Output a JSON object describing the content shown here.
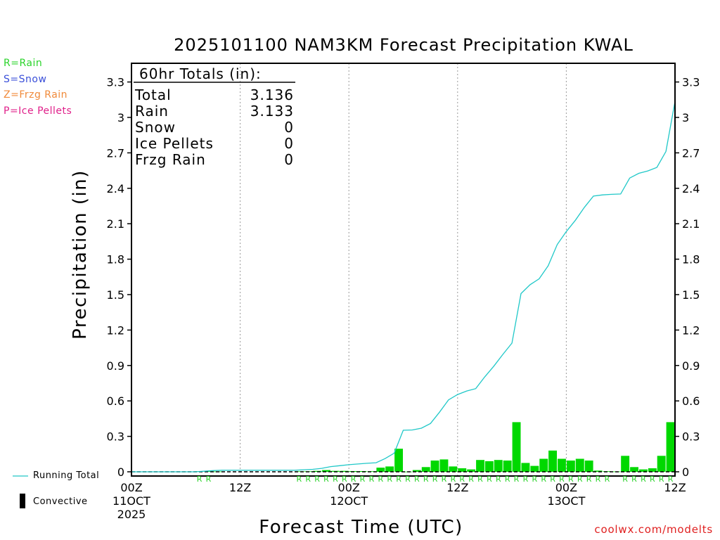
{
  "legend": {
    "rain": "R=Rain",
    "snow": "S=Snow",
    "frzg_rain": "Z=Frzg Rain",
    "ice_pellets": "P=Ice Pellets"
  },
  "colors": {
    "rain": "#2ad32a",
    "snow": "#3a4fd9",
    "frzg_rain": "#f08a3a",
    "ice_pellets": "#e0208a",
    "running_total": "#20c8c8",
    "bars": "#00d800",
    "credit": "#e02020"
  },
  "bottom_legend": {
    "running_total": "Running Total",
    "convective": "Convective"
  },
  "credit": "coolwx.com/modelts",
  "chart_data": {
    "type": "bar",
    "title": "2025101100 NAM3KM Forecast Precipitation KWAL",
    "xlabel": "Forecast Time (UTC)",
    "ylabel": "Precipitation (in)",
    "ylim": [
      0,
      3.45
    ],
    "xlim": [
      0,
      60
    ],
    "yticks": [
      "0",
      "0.3",
      "0.6",
      "0.9",
      "1.2",
      "1.5",
      "1.8",
      "2.1",
      "2.4",
      "2.7",
      "3",
      "3.3"
    ],
    "xticks": [
      {
        "hour": 0,
        "lines": [
          "00Z",
          "11OCT",
          "2025"
        ]
      },
      {
        "hour": 12,
        "lines": [
          "12Z"
        ]
      },
      {
        "hour": 24,
        "lines": [
          "00Z",
          "12OCT"
        ]
      },
      {
        "hour": 36,
        "lines": [
          "12Z"
        ]
      },
      {
        "hour": 48,
        "lines": [
          "00Z",
          "13OCT"
        ]
      },
      {
        "hour": 60,
        "lines": [
          "12Z"
        ]
      }
    ],
    "totals_box": {
      "header": "60hr Totals (in):",
      "rows": [
        {
          "label": "Total",
          "value": "3.136"
        },
        {
          "label": "Rain",
          "value": "3.133"
        },
        {
          "label": "Snow",
          "value": "0"
        },
        {
          "label": "Ice Pellets",
          "value": "0"
        },
        {
          "label": "Frzg Rain",
          "value": "0"
        }
      ]
    },
    "series": [
      {
        "name": "Hourly Precipitation",
        "type": "bar",
        "hours": [
          8,
          9,
          10,
          19,
          20,
          21,
          22,
          23,
          24,
          25,
          26,
          27,
          28,
          29,
          30,
          31,
          32,
          33,
          34,
          35,
          36,
          37,
          38,
          39,
          40,
          41,
          42,
          43,
          44,
          45,
          46,
          47,
          48,
          49,
          50,
          51,
          52,
          53,
          54,
          55,
          56,
          57,
          58,
          59,
          60
        ],
        "values": [
          0.005,
          0.005,
          0.003,
          0.004,
          0.004,
          0.008,
          0.015,
          0.008,
          0.008,
          0.006,
          0.006,
          0.005,
          0.035,
          0.045,
          0.195,
          0.002,
          0.015,
          0.04,
          0.095,
          0.105,
          0.045,
          0.03,
          0.02,
          0.1,
          0.09,
          0.1,
          0.095,
          0.42,
          0.075,
          0.05,
          0.11,
          0.18,
          0.11,
          0.095,
          0.11,
          0.095,
          0.01,
          0.005,
          0.003,
          0.135,
          0.04,
          0.02,
          0.03,
          0.135,
          0.42
        ]
      },
      {
        "name": "Running Total",
        "type": "line",
        "hours": [
          0,
          1,
          2,
          3,
          4,
          5,
          6,
          7,
          8,
          9,
          10,
          11,
          12,
          13,
          14,
          15,
          16,
          17,
          18,
          19,
          20,
          21,
          22,
          23,
          24,
          25,
          26,
          27,
          28,
          29,
          30,
          31,
          32,
          33,
          34,
          35,
          36,
          37,
          38,
          39,
          40,
          41,
          42,
          43,
          44,
          45,
          46,
          47,
          48,
          49,
          50,
          51,
          52,
          53,
          54,
          55,
          56,
          57,
          58,
          59,
          60
        ],
        "values": [
          0,
          0,
          0,
          0,
          0,
          0,
          0,
          0,
          0.005,
          0.01,
          0.013,
          0.013,
          0.013,
          0.013,
          0.013,
          0.013,
          0.013,
          0.013,
          0.013,
          0.017,
          0.021,
          0.029,
          0.044,
          0.052,
          0.06,
          0.066,
          0.072,
          0.077,
          0.112,
          0.157,
          0.352,
          0.354,
          0.369,
          0.409,
          0.504,
          0.609,
          0.654,
          0.684,
          0.704,
          0.804,
          0.894,
          0.994,
          1.089,
          1.509,
          1.584,
          1.634,
          1.744,
          1.924,
          2.034,
          2.129,
          2.239,
          2.334,
          2.344,
          2.349,
          2.352,
          2.487,
          2.527,
          2.547,
          2.577,
          2.712,
          3.136
        ]
      }
    ],
    "precip_type_markers": {
      "label": "R",
      "hours": [
        8,
        9,
        19,
        20,
        21,
        22,
        23,
        24,
        25,
        26,
        27,
        28,
        29,
        30,
        31,
        32,
        33,
        34,
        35,
        36,
        37,
        38,
        39,
        40,
        41,
        42,
        43,
        44,
        45,
        46,
        47,
        48,
        49,
        50,
        51,
        52,
        53,
        55,
        56,
        57,
        58,
        59,
        60
      ]
    }
  }
}
